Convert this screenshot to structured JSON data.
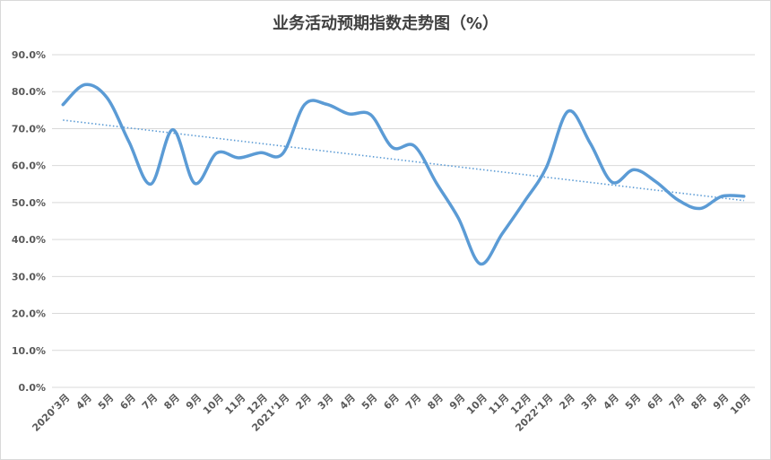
{
  "chart_data": {
    "type": "line",
    "title": "业务活动预期指数走势图（%）",
    "xlabel": "",
    "ylabel": "",
    "ylim": [
      0,
      90
    ],
    "yticks": [
      "0.0%",
      "10.0%",
      "20.0%",
      "30.0%",
      "40.0%",
      "50.0%",
      "60.0%",
      "70.0%",
      "80.0%",
      "90.0%"
    ],
    "categories": [
      "2020’3月",
      "4月",
      "5月",
      "6月",
      "7月",
      "8月",
      "9月",
      "10月",
      "11月",
      "12月",
      "2021’1月",
      "2月",
      "3月",
      "4月",
      "5月",
      "6月",
      "7月",
      "8月",
      "9月",
      "10月",
      "11月",
      "12月",
      "2022’1月",
      "2月",
      "3月",
      "4月",
      "5月",
      "6月",
      "7月",
      "8月",
      "9月",
      "10月"
    ],
    "series": [
      {
        "values": [
          76.5,
          81.9,
          78.4,
          66.5,
          55.0,
          69.7,
          55.2,
          63.4,
          62.1,
          63.5,
          63.2,
          76.5,
          76.6,
          74.0,
          73.8,
          64.9,
          65.3,
          55.3,
          45.8,
          33.4,
          41.6,
          50.2,
          59.4,
          74.7,
          66.1,
          55.5,
          58.9,
          55.6,
          50.7,
          48.4,
          51.7,
          51.7
        ],
        "color": "#5b9bd5"
      }
    ],
    "trendline": {
      "type": "linear",
      "style": "dotted",
      "color": "#5b9bd5"
    },
    "grid": true,
    "legend": "none"
  }
}
